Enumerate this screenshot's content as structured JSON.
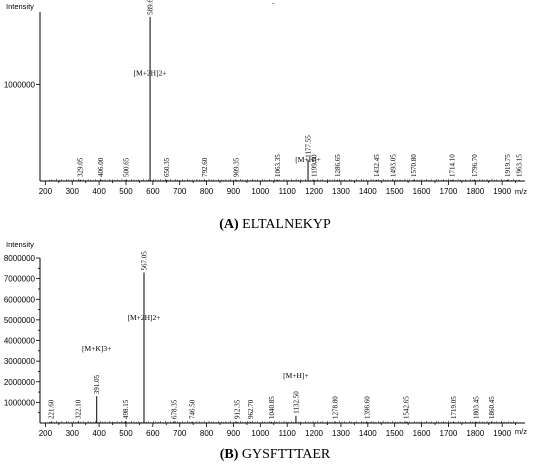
{
  "panels": [
    {
      "caption_letter": "(A)",
      "caption_name": "ELTALNEKYP",
      "top_mark": "-",
      "chart_data": {
        "type": "bar",
        "ylabel": "Intensity",
        "xlabel": "m/z",
        "xlim": [
          180,
          1985
        ],
        "ylim": [
          0,
          1750000
        ],
        "xticks": [
          200,
          300,
          400,
          500,
          600,
          700,
          800,
          900,
          1000,
          1100,
          1200,
          1300,
          1400,
          1500,
          1600,
          1700,
          1800,
          1900
        ],
        "yticks": [
          1000000
        ],
        "ytick_labels": [
          "1000000"
        ],
        "peaks": [
          {
            "mz": 329.05,
            "label": "329.05",
            "intensity": 12000
          },
          {
            "mz": 406.0,
            "label": "406.00",
            "intensity": 12000
          },
          {
            "mz": 500.65,
            "label": "500.65",
            "intensity": 12000
          },
          {
            "mz": 589.6,
            "label": "589.60",
            "intensity": 1700000
          },
          {
            "mz": 650.35,
            "label": "650.35",
            "intensity": 12000
          },
          {
            "mz": 792.6,
            "label": "792.60",
            "intensity": 12000
          },
          {
            "mz": 909.35,
            "label": "909.35",
            "intensity": 12000
          },
          {
            "mz": 1063.35,
            "label": "1063.35",
            "intensity": 12000
          },
          {
            "mz": 1177.55,
            "label": "1177.55",
            "intensity": 220000
          },
          {
            "mz": 1199.6,
            "label": "1199.60",
            "intensity": 12000
          },
          {
            "mz": 1286.65,
            "label": "1286.65",
            "intensity": 12000
          },
          {
            "mz": 1432.45,
            "label": "1432.45",
            "intensity": 12000
          },
          {
            "mz": 1493.05,
            "label": "1493.05",
            "intensity": 12000
          },
          {
            "mz": 1570.8,
            "label": "1570.80",
            "intensity": 12000
          },
          {
            "mz": 1714.1,
            "label": "1714.10",
            "intensity": 12000
          },
          {
            "mz": 1796.7,
            "label": "1796.70",
            "intensity": 12000
          },
          {
            "mz": 1919.75,
            "label": "1919.75",
            "intensity": 12000
          },
          {
            "mz": 1963.15,
            "label": "1963.15",
            "intensity": 12000
          }
        ],
        "annotations": [
          {
            "mz": 589.6,
            "text": "[M+2H]2+"
          },
          {
            "mz": 1177.55,
            "text": "[M+H]+"
          }
        ]
      }
    },
    {
      "caption_letter": "(B)",
      "caption_name": "GYSFTTTAER",
      "chart_data": {
        "type": "bar",
        "ylabel": "Intensity",
        "xlabel": "m/z",
        "xlim": [
          180,
          1985
        ],
        "ylim": [
          0,
          8000000
        ],
        "xticks": [
          200,
          300,
          400,
          500,
          600,
          700,
          800,
          900,
          1000,
          1100,
          1200,
          1300,
          1400,
          1500,
          1600,
          1700,
          1800,
          1900
        ],
        "yticks": [
          1000000,
          2000000,
          3000000,
          4000000,
          5000000,
          6000000,
          7000000,
          8000000
        ],
        "ytick_labels": [
          "1000000",
          "2000000",
          "3000000",
          "4000000",
          "5000000",
          "6000000",
          "7000000",
          "8000000"
        ],
        "peaks": [
          {
            "mz": 221.6,
            "label": "221.60",
            "intensity": 60000
          },
          {
            "mz": 322.1,
            "label": "322.10",
            "intensity": 60000
          },
          {
            "mz": 391.05,
            "label": "391.05",
            "intensity": 1300000
          },
          {
            "mz": 498.15,
            "label": "498.15",
            "intensity": 80000
          },
          {
            "mz": 567.05,
            "label": "567.05",
            "intensity": 7300000
          },
          {
            "mz": 678.35,
            "label": "678.35",
            "intensity": 80000
          },
          {
            "mz": 746.5,
            "label": "746.50",
            "intensity": 60000
          },
          {
            "mz": 912.35,
            "label": "912.35",
            "intensity": 60000
          },
          {
            "mz": 962.7,
            "label": "962.70",
            "intensity": 60000
          },
          {
            "mz": 1040.85,
            "label": "1040.85",
            "intensity": 60000
          },
          {
            "mz": 1132.5,
            "label": "1132.50",
            "intensity": 350000
          },
          {
            "mz": 1278.8,
            "label": "1278.80",
            "intensity": 60000
          },
          {
            "mz": 1396.6,
            "label": "1396.60",
            "intensity": 60000
          },
          {
            "mz": 1542.65,
            "label": "1542.65",
            "intensity": 60000
          },
          {
            "mz": 1719.05,
            "label": "1719.05",
            "intensity": 60000
          },
          {
            "mz": 1803.45,
            "label": "1803.45",
            "intensity": 60000
          },
          {
            "mz": 1860.45,
            "label": "1860.45",
            "intensity": 60000
          }
        ],
        "annotations": [
          {
            "mz": 391.05,
            "text": "[M+K]3+"
          },
          {
            "mz": 567.05,
            "text": "[M+2H]2+"
          },
          {
            "mz": 1132.5,
            "text": "[M+H]+"
          }
        ]
      }
    }
  ]
}
